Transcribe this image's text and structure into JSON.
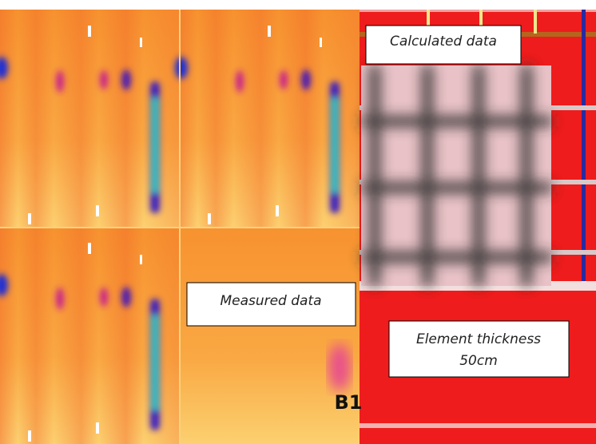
{
  "labels": {
    "calculated": "Calculated data",
    "measured": "Measured data",
    "element": [
      "Element thickness",
      "50cm"
    ],
    "panel": "B1"
  }
}
